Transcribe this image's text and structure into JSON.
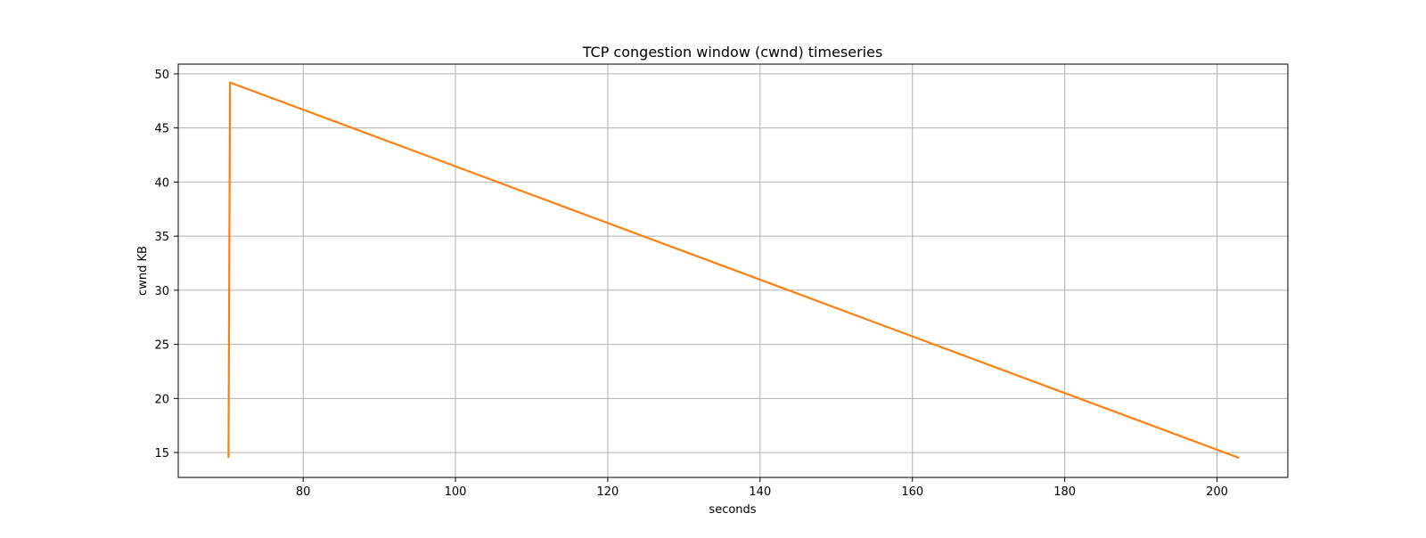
{
  "chart_data": {
    "type": "line",
    "title": "TCP congestion window (cwnd) timeseries",
    "xlabel": "seconds",
    "ylabel": "cwnd KB",
    "xlim": [
      63.6,
      209.3
    ],
    "ylim": [
      12.7,
      50.9
    ],
    "xticks": [
      80,
      100,
      120,
      140,
      160,
      180,
      200
    ],
    "yticks": [
      15,
      20,
      25,
      30,
      35,
      40,
      45,
      50
    ],
    "grid": true,
    "series": [
      {
        "color": "#ff7f0e",
        "x": [
          70.2,
          70.4,
          202.9
        ],
        "y": [
          14.5,
          49.2,
          14.5
        ]
      }
    ]
  }
}
